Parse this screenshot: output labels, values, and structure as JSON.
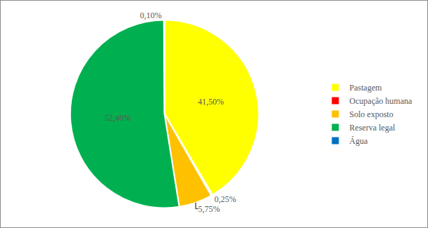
{
  "chart_data": {
    "type": "pie",
    "categories": [
      "Pastagem",
      "Ocupação humana",
      "Solo exposto",
      "Reserva legal",
      "Água"
    ],
    "values": [
      41.5,
      0.25,
      5.75,
      52.4,
      0.1
    ],
    "value_labels": [
      "41,50%",
      "0,25%",
      "5,75%",
      "52,40%",
      "0,10%"
    ],
    "colors": [
      "#ffff00",
      "#ff0000",
      "#ffc000",
      "#00b050",
      "#0070c0"
    ],
    "data_labels": true,
    "legend": "right"
  }
}
